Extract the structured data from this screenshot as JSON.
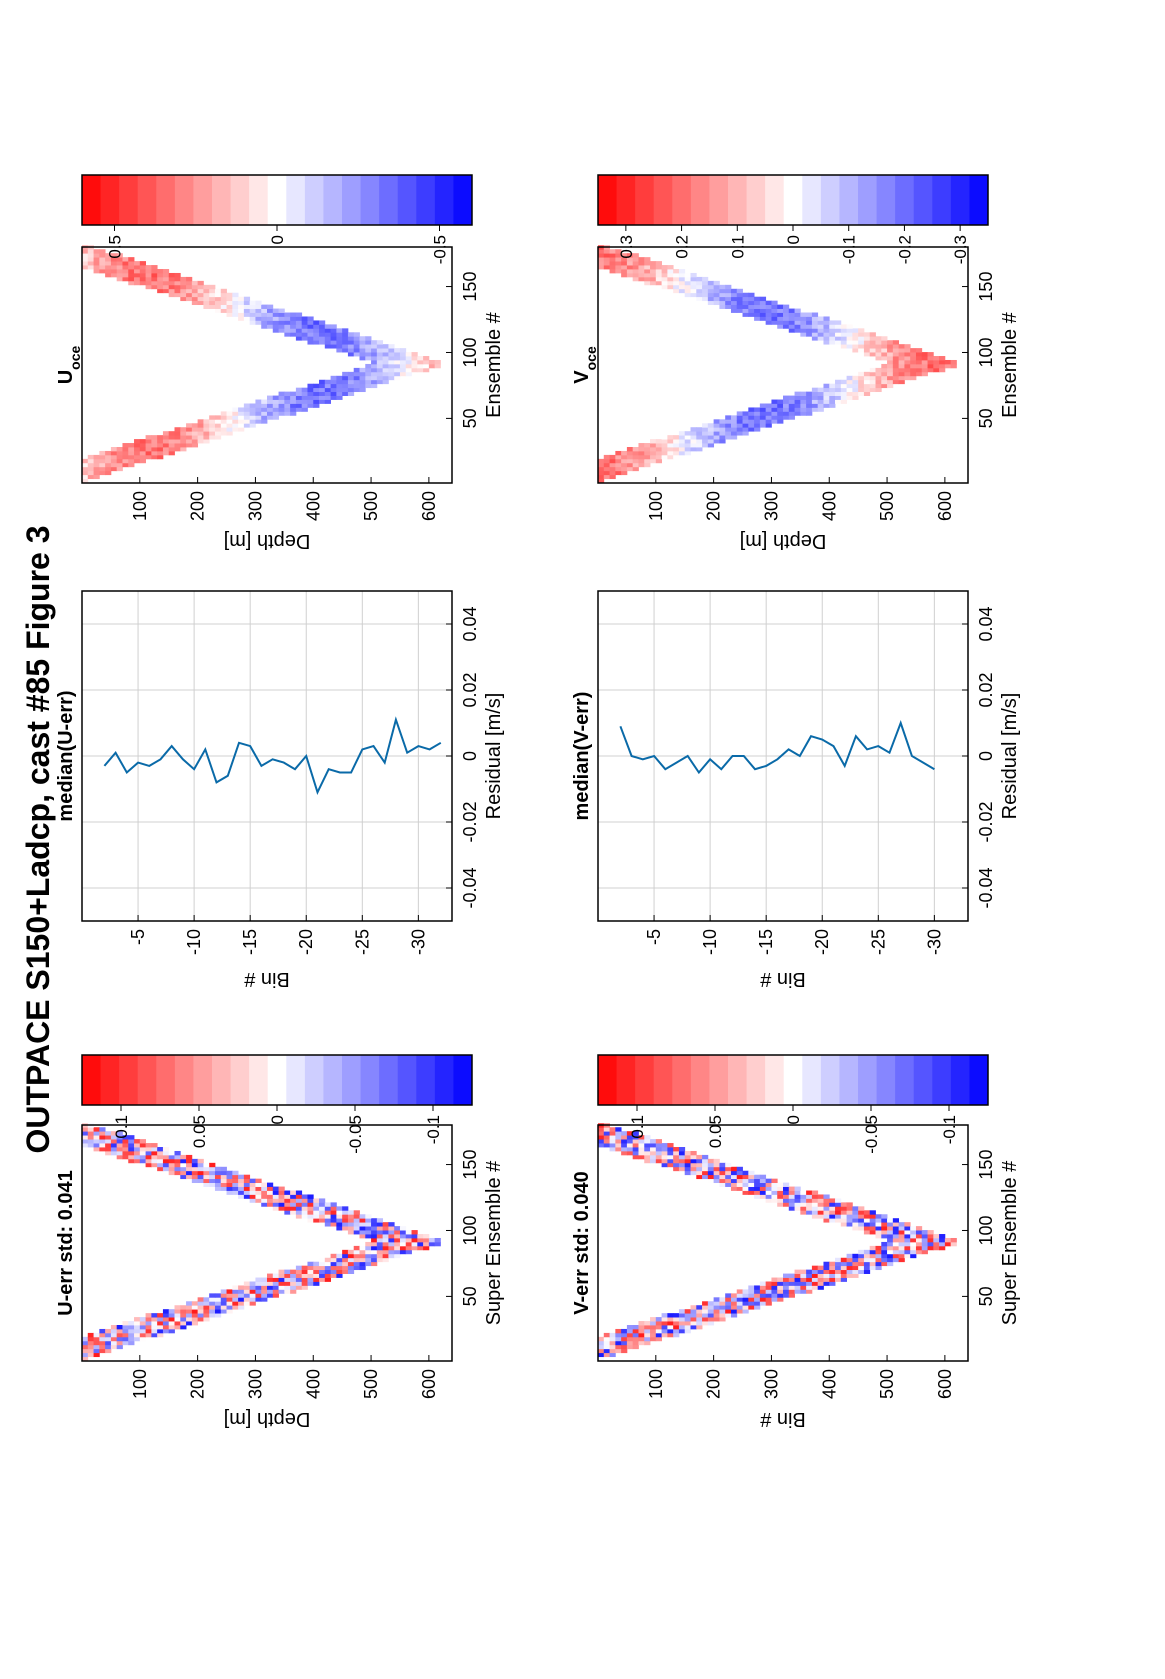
{
  "figure_title": "OUTPACE S150+Ladcp, cast #85  Figure 3",
  "chart_data": [
    {
      "type": "heatmap",
      "title": "U-err std: 0.041",
      "xlabel": "Super Ensemble #",
      "ylabel": "Depth [m]",
      "xlim": [
        1,
        180
      ],
      "ylim": [
        640,
        0
      ],
      "xticks": [
        "50",
        "100",
        "150"
      ],
      "yticks": [
        "100",
        "200",
        "300",
        "400",
        "500",
        "600"
      ],
      "max_depth_m": 620,
      "turn_ensemble": 90,
      "colorbar": {
        "range": [
          -0.125,
          0.125
        ],
        "ticks": [
          "0.1",
          "0.05",
          "0",
          "-0.05",
          "-0.1"
        ],
        "steps": 21
      }
    },
    {
      "type": "line",
      "title": "median(U-err)",
      "xlabel": "Residual [m/s]",
      "ylabel": "Bin #",
      "xlim": [
        -0.05,
        0.05
      ],
      "ylim": [
        -33,
        0
      ],
      "grid": true,
      "xticks": [
        "-0.04",
        "-0.02",
        "0",
        "0.02",
        "0.04"
      ],
      "yticks": [
        "-5",
        "-10",
        "-15",
        "-20",
        "-25",
        "-30"
      ],
      "series": [
        {
          "x": [
            -0.003,
            0.001,
            -0.005,
            -0.002,
            -0.003,
            -0.001,
            0.003,
            -0.001,
            -0.004,
            0.002,
            -0.008,
            -0.006,
            0.004,
            0.003,
            -0.003,
            -0.001,
            -0.002,
            -0.004,
            0.0,
            -0.011,
            -0.004,
            -0.005,
            -0.005,
            0.002,
            0.003,
            -0.002,
            0.011,
            0.001,
            0.003,
            0.002,
            0.004
          ],
          "y": [
            -2,
            -3,
            -4,
            -5,
            -6,
            -7,
            -8,
            -9,
            -10,
            -11,
            -12,
            -13,
            -14,
            -15,
            -16,
            -17,
            -18,
            -19,
            -20,
            -21,
            -22,
            -23,
            -24,
            -25,
            -26,
            -27,
            -28,
            -29,
            -30,
            -31,
            -32
          ]
        }
      ]
    },
    {
      "type": "heatmap",
      "title": "U",
      "title_subscript": "oce",
      "xlabel": "Ensemble #",
      "ylabel": "Depth [m]",
      "xlim": [
        1,
        180
      ],
      "ylim": [
        640,
        0
      ],
      "xticks": [
        "50",
        "100",
        "150"
      ],
      "yticks": [
        "100",
        "200",
        "300",
        "400",
        "500",
        "600"
      ],
      "max_depth_m": 620,
      "turn_ensemble": 90,
      "colorbar": {
        "range": [
          -0.6,
          0.6
        ],
        "ticks": [
          "0.5",
          "0",
          "-0.5"
        ],
        "steps": 21
      }
    },
    {
      "type": "heatmap",
      "title": "V-err std: 0.040",
      "xlabel": "Super Ensemble #",
      "ylabel": "Bin #",
      "xlim": [
        1,
        180
      ],
      "ylim": [
        640,
        0
      ],
      "xticks": [
        "50",
        "100",
        "150"
      ],
      "yticks": [
        "100",
        "200",
        "300",
        "400",
        "500",
        "600"
      ],
      "max_depth_m": 620,
      "turn_ensemble": 90,
      "colorbar": {
        "range": [
          -0.125,
          0.125
        ],
        "ticks": [
          "0.1",
          "0.05",
          "0",
          "-0.05",
          "-0.1"
        ],
        "steps": 21
      }
    },
    {
      "type": "line",
      "title": "median(V-err)",
      "xlabel": "Residual [m/s]",
      "ylabel": "Bin #",
      "xlim": [
        -0.05,
        0.05
      ],
      "ylim": [
        -33,
        0
      ],
      "grid": true,
      "xticks": [
        "-0.04",
        "-0.02",
        "0",
        "0.02",
        "0.04"
      ],
      "yticks": [
        "-5",
        "-10",
        "-15",
        "-20",
        "-25",
        "-30"
      ],
      "series": [
        {
          "x": [
            0.009,
            0.0,
            -0.001,
            0.0,
            -0.004,
            -0.002,
            0.0,
            -0.005,
            -0.001,
            -0.004,
            0.0,
            0.0,
            -0.004,
            -0.003,
            -0.001,
            0.002,
            0.0,
            0.006,
            0.005,
            0.003,
            -0.003,
            0.006,
            0.002,
            0.003,
            0.001,
            0.01,
            0.0,
            -0.004
          ],
          "y": [
            -2,
            -3,
            -4,
            -5,
            -6,
            -7,
            -8,
            -9,
            -10,
            -11,
            -12,
            -13,
            -14,
            -15,
            -16,
            -17,
            -18,
            -19,
            -20,
            -21,
            -22,
            -23,
            -24,
            -25,
            -26,
            -27,
            -28,
            -30
          ]
        }
      ]
    },
    {
      "type": "heatmap",
      "title": "V",
      "title_subscript": "oce",
      "xlabel": "Ensemble #",
      "ylabel": "Depth [m]",
      "xlim": [
        1,
        180
      ],
      "ylim": [
        640,
        0
      ],
      "xticks": [
        "50",
        "100",
        "150"
      ],
      "yticks": [
        "100",
        "200",
        "300",
        "400",
        "500",
        "600"
      ],
      "max_depth_m": 620,
      "turn_ensemble": 90,
      "colorbar": {
        "range": [
          -0.35,
          0.35
        ],
        "ticks": [
          "0.3",
          "0.2",
          "0.1",
          "0",
          "-0.1",
          "-0.2",
          "-0.3"
        ],
        "steps": 21
      }
    }
  ]
}
